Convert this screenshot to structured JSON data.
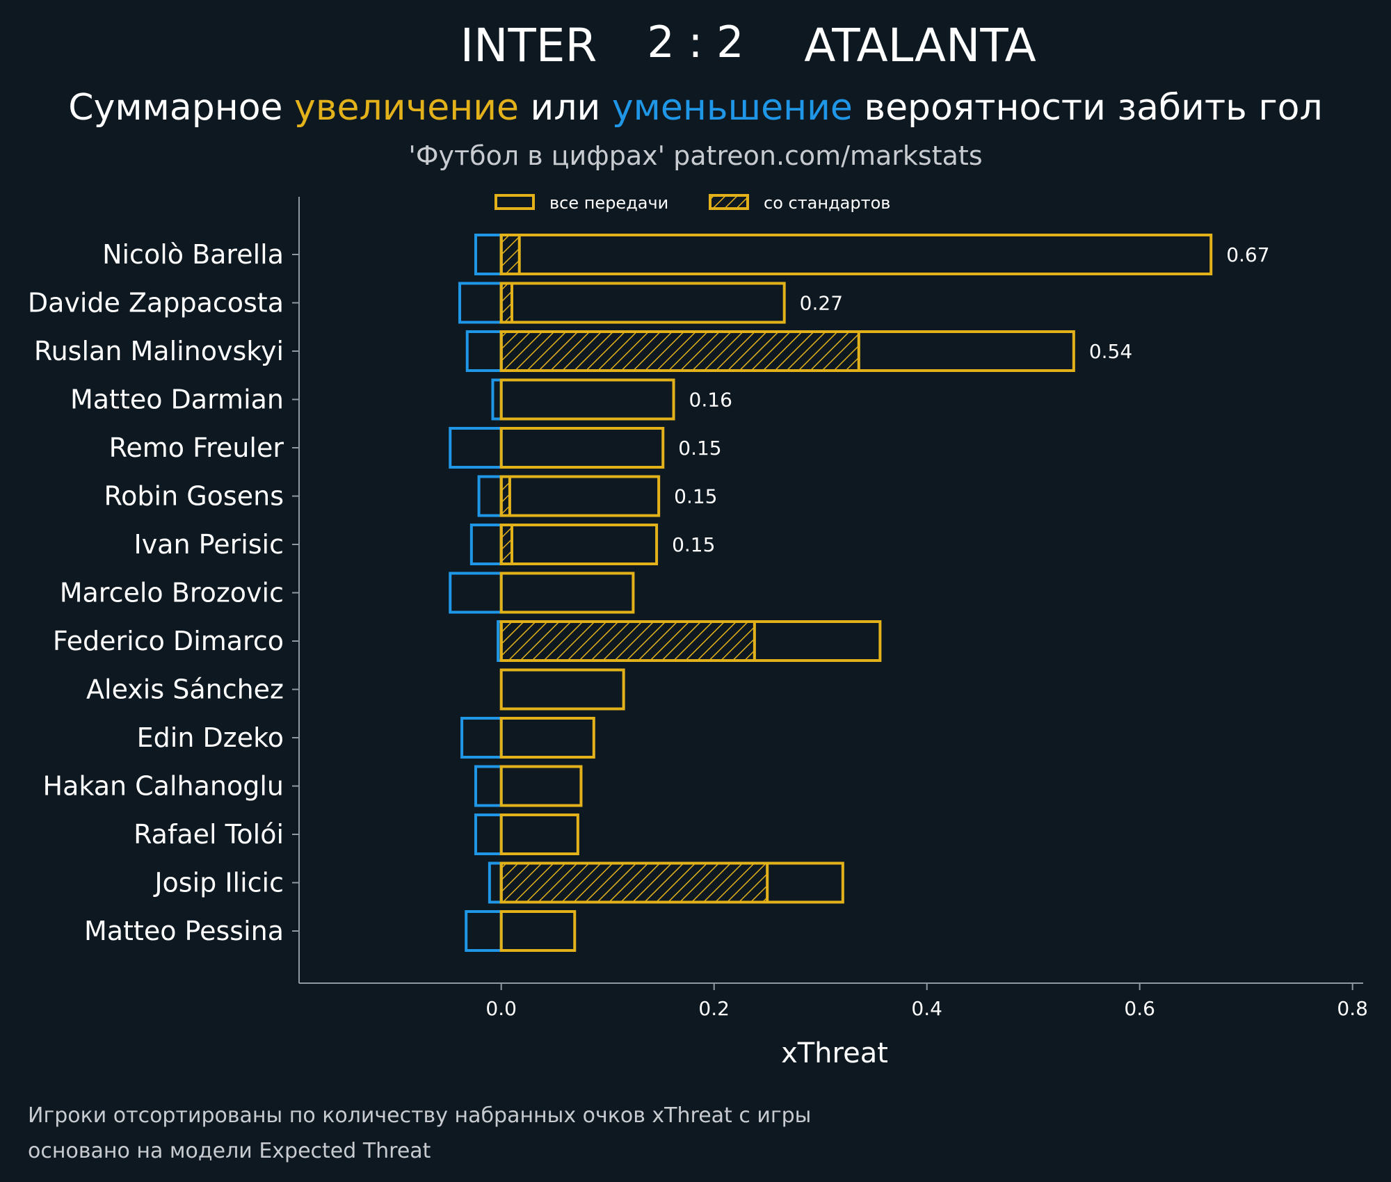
{
  "header": {
    "home_team": "INTER",
    "score": "2 : 2",
    "away_team": "ATALANTA",
    "subtitle_part1": "Суммарное ",
    "subtitle_increase": "увеличение",
    "subtitle_part2": " или ",
    "subtitle_decrease": "уменьшение",
    "subtitle_part3": " вероятности забить гол",
    "source": "'Футбол в цифрах' patreon.com/markstats"
  },
  "footer": {
    "line1": "Игроки отсортированы по количеству набранных очков xThreat с игры",
    "line2": "основано на модели Expected Threat"
  },
  "colors": {
    "background": "#0e1821",
    "positive": "#e3b21b",
    "negative": "#1f96e6",
    "text": "#ffffff",
    "axis": "#8f99a3"
  },
  "chart_data": {
    "type": "bar",
    "orientation": "horizontal",
    "xlabel": "xThreat",
    "xlim": [
      -0.19,
      0.81
    ],
    "xticks": [
      "0.0",
      "0.2",
      "0.4",
      "0.6",
      "0.8"
    ],
    "xtick_values": [
      0,
      0.2,
      0.4,
      0.6,
      0.8
    ],
    "legend": {
      "placement": "top-center",
      "entries": [
        "все передачи",
        "со стандартов"
      ]
    },
    "categories": [
      "Nicolò Barella",
      "Davide Zappacosta",
      "Ruslan Malinovskyi",
      "Matteo Darmian",
      "Remo Freuler",
      "Robin Gosens",
      "Ivan Perisic",
      "Marcelo Brozovic",
      "Federico Dimarco",
      "Alexis Sánchez",
      "Edin Dzeko",
      "Hakan Calhanoglu",
      "Rafael Tolói",
      "Josip Ilicic",
      "Matteo Pessina"
    ],
    "series": [
      {
        "name": "все передачи (положительные)",
        "values": [
          0.667,
          0.266,
          0.538,
          0.162,
          0.152,
          0.148,
          0.146,
          0.124,
          0.356,
          0.115,
          0.087,
          0.075,
          0.072,
          0.321,
          0.069
        ]
      },
      {
        "name": "со стандартов",
        "values": [
          0.017,
          0.01,
          0.336,
          0,
          0,
          0.008,
          0.01,
          0,
          0.238,
          0,
          0,
          0,
          0,
          0.25,
          0
        ]
      },
      {
        "name": "все передачи (отрицательные)",
        "values": [
          -0.024,
          -0.039,
          -0.032,
          -0.008,
          -0.048,
          -0.021,
          -0.028,
          -0.048,
          -0.003,
          0,
          -0.037,
          -0.024,
          -0.024,
          -0.011,
          -0.033
        ]
      }
    ],
    "data_labels": [
      "0.67",
      "0.27",
      "0.54",
      "0.16",
      "0.15",
      "0.15",
      "0.15",
      "",
      "",
      "",
      "",
      "",
      "",
      "",
      ""
    ]
  }
}
